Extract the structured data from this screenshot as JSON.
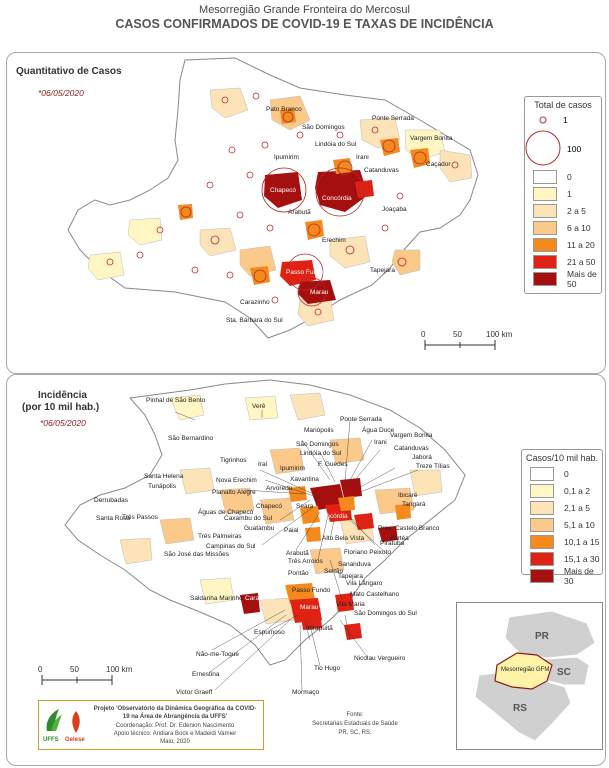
{
  "header": {
    "title": "Mesorregião Grande Fronteira do Mercosul",
    "subtitle": "CASOS CONFIRMADOS DE COVID-19 E TAXAS DE INCIDÊNCIA"
  },
  "map_cases": {
    "title": "Quantitativo de Casos",
    "date": "*06/05/2020",
    "legend_title": "Total de casos",
    "bubble_legend": [
      "1",
      "100"
    ],
    "classes": [
      {
        "label": "0",
        "color": "#ffffff"
      },
      {
        "label": "1",
        "color": "#fff6c4"
      },
      {
        "label": "2 a 5",
        "color": "#fde3b8"
      },
      {
        "label": "6 a 10",
        "color": "#fbc98a"
      },
      {
        "label": "11 a 20",
        "color": "#f28a1e"
      },
      {
        "label": "21 a 50",
        "color": "#e02214"
      },
      {
        "label": "Mais de 50",
        "color": "#a50f0f"
      }
    ],
    "scale": [
      "0",
      "50",
      "100 km"
    ],
    "places": [
      "Pato Branco",
      "São Domingos",
      "Ponte Serrada",
      "Vargem Bonita",
      "Lindóia do Sul",
      "Irani",
      "Caçador",
      "Ipumirim",
      "Chapecó",
      "Catanduvas",
      "Concórdia",
      "Joaçaba",
      "Arabutã",
      "Erechim",
      "Tapejara",
      "Passo Fundo",
      "Marau",
      "Carazinho",
      "Sta. Bárbara do Sul"
    ]
  },
  "map_incidence": {
    "title": "Incidência",
    "title2": "(por 10 mil hab.)",
    "date": "*06/05/2020",
    "legend_title": "Casos/10 mil hab.",
    "classes": [
      {
        "label": "0",
        "color": "#ffffff"
      },
      {
        "label": "0,1 a 2",
        "color": "#fff6c4"
      },
      {
        "label": "2,1 a 5",
        "color": "#fde3b8"
      },
      {
        "label": "5,1 a 10",
        "color": "#fbc98a"
      },
      {
        "label": "10,1 a 15",
        "color": "#f28a1e"
      },
      {
        "label": "15,1 a 30",
        "color": "#e02214"
      },
      {
        "label": "Mais de 30",
        "color": "#a50f0f"
      }
    ],
    "scale": [
      "0",
      "50",
      "100 km"
    ],
    "places": [
      "Pinhal de São Bento",
      "Verê",
      "São Bernardino",
      "Mariópolis",
      "São Domingos",
      "Lindóia do Sul",
      "Ponte Serrada",
      "Água Doce",
      "Irani",
      "Vargem Bonita",
      "Catanduvas",
      "Jaborá",
      "Treze Tílias",
      "Tigrinhos",
      "Iraí",
      "Ipumirim",
      "F. Guedes",
      "Xavantina",
      "Arvoredo",
      "Santa Helena",
      "Tunápolis",
      "Nova Erechim",
      "Planalto Alegre",
      "Ibicaré",
      "Tangará",
      "Derrubadas",
      "Três Passos",
      "Santa Rosa",
      "Chapecó",
      "Seara",
      "Concórdia",
      "Piratuba",
      "Águas de Chapecó",
      "Caxambu do Sul",
      "Guatambu",
      "Paial",
      "Três Palmeiras",
      "Campinas do Sul",
      "Arabutã",
      "Alto Bela Vista",
      "Pres. Castelo Branco",
      "Zortéa",
      "Três Arroios",
      "Floriano Peixoto",
      "Sananduva",
      "São José das Missões",
      "Pontão",
      "Sertão",
      "Tapejara",
      "Vila Lângaro",
      "Mato Castelhano",
      "Carazinho",
      "Passo Fundo",
      "Marau",
      "Saldanha Marinho",
      "Espumoso",
      "Ibirapuitã",
      "Vila Maria",
      "São Domingos do Sul",
      "Nicolau Vergueiro",
      "Tio Hugo",
      "Mormaço",
      "Não-me-Toque",
      "Ernestina",
      "Victor Graeff"
    ]
  },
  "inset": {
    "states": [
      "PR",
      "SC",
      "RS"
    ],
    "region_label": "Mesorregião GFM"
  },
  "footer": {
    "project": "Projeto 'Observatório da Dinâmica Geográfica da COVID-19 na Área de Abrangência da UFFS'",
    "coordination": "Coordenação: Prof. Dr. Edenion Nascimento",
    "support": "Apoio técnico: Andiara Bock e Madeidi Vamier",
    "date": "Maio, 2020",
    "logo1": "UFFS",
    "logo2": "Gelese",
    "source_title": "Fonte:",
    "source1": "Secretarias Estaduais de Saúde",
    "source2": "PR, SC, RS."
  }
}
